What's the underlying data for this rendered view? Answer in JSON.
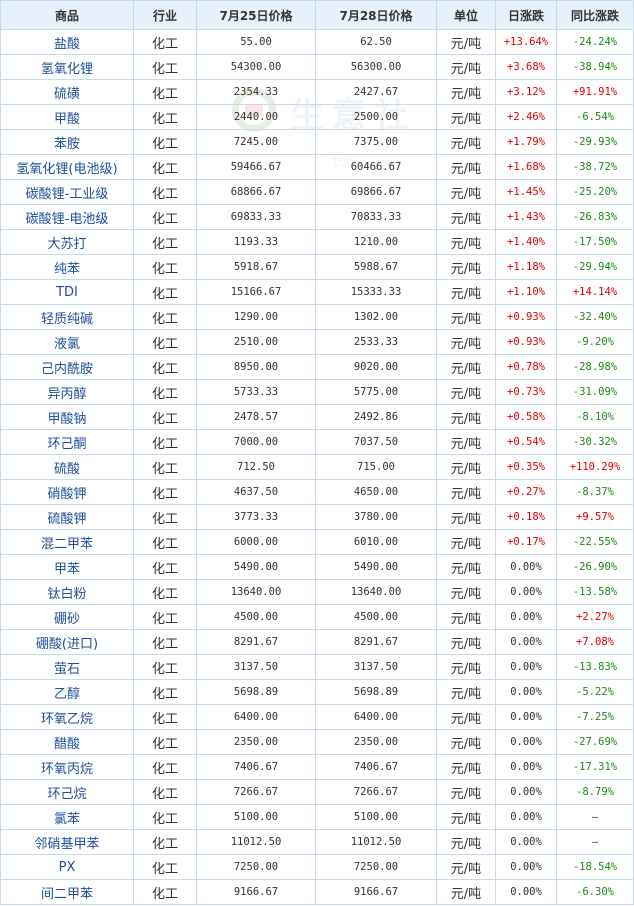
{
  "headers": [
    "商品",
    "行业",
    "7月25日价格",
    "7月28日价格",
    "单位",
    "日涨跌",
    "同比涨跌"
  ],
  "watermark": {
    "text": "生意社",
    "url": "100ppi.com"
  },
  "colors": {
    "up": "#e00000",
    "down": "#1a8a1a",
    "header_bg": "#e7f1fc",
    "border": "#c6d9ee",
    "link": "#1f4e9d"
  },
  "rows": [
    {
      "name": "盐酸",
      "industry": "化工",
      "p1": "55.00",
      "p2": "62.50",
      "unit": "元/吨",
      "day": "+13.64%",
      "yoy": "-24.24%"
    },
    {
      "name": "氢氧化锂",
      "industry": "化工",
      "p1": "54300.00",
      "p2": "56300.00",
      "unit": "元/吨",
      "day": "+3.68%",
      "yoy": "-38.94%"
    },
    {
      "name": "硫磺",
      "industry": "化工",
      "p1": "2354.33",
      "p2": "2427.67",
      "unit": "元/吨",
      "day": "+3.12%",
      "yoy": "+91.91%"
    },
    {
      "name": "甲酸",
      "industry": "化工",
      "p1": "2440.00",
      "p2": "2500.00",
      "unit": "元/吨",
      "day": "+2.46%",
      "yoy": "-6.54%"
    },
    {
      "name": "苯胺",
      "industry": "化工",
      "p1": "7245.00",
      "p2": "7375.00",
      "unit": "元/吨",
      "day": "+1.79%",
      "yoy": "-29.93%"
    },
    {
      "name": "氢氧化锂(电池级)",
      "industry": "化工",
      "p1": "59466.67",
      "p2": "60466.67",
      "unit": "元/吨",
      "day": "+1.68%",
      "yoy": "-38.72%"
    },
    {
      "name": "碳酸锂-工业级",
      "industry": "化工",
      "p1": "68866.67",
      "p2": "69866.67",
      "unit": "元/吨",
      "day": "+1.45%",
      "yoy": "-25.20%"
    },
    {
      "name": "碳酸锂-电池级",
      "industry": "化工",
      "p1": "69833.33",
      "p2": "70833.33",
      "unit": "元/吨",
      "day": "+1.43%",
      "yoy": "-26.83%"
    },
    {
      "name": "大苏打",
      "industry": "化工",
      "p1": "1193.33",
      "p2": "1210.00",
      "unit": "元/吨",
      "day": "+1.40%",
      "yoy": "-17.50%"
    },
    {
      "name": "纯苯",
      "industry": "化工",
      "p1": "5918.67",
      "p2": "5988.67",
      "unit": "元/吨",
      "day": "+1.18%",
      "yoy": "-29.94%"
    },
    {
      "name": "TDI",
      "industry": "化工",
      "p1": "15166.67",
      "p2": "15333.33",
      "unit": "元/吨",
      "day": "+1.10%",
      "yoy": "+14.14%"
    },
    {
      "name": "轻质纯碱",
      "industry": "化工",
      "p1": "1290.00",
      "p2": "1302.00",
      "unit": "元/吨",
      "day": "+0.93%",
      "yoy": "-32.40%"
    },
    {
      "name": "液氯",
      "industry": "化工",
      "p1": "2510.00",
      "p2": "2533.33",
      "unit": "元/吨",
      "day": "+0.93%",
      "yoy": "-9.20%"
    },
    {
      "name": "己内酰胺",
      "industry": "化工",
      "p1": "8950.00",
      "p2": "9020.00",
      "unit": "元/吨",
      "day": "+0.78%",
      "yoy": "-28.98%"
    },
    {
      "name": "异丙醇",
      "industry": "化工",
      "p1": "5733.33",
      "p2": "5775.00",
      "unit": "元/吨",
      "day": "+0.73%",
      "yoy": "-31.09%"
    },
    {
      "name": "甲酸钠",
      "industry": "化工",
      "p1": "2478.57",
      "p2": "2492.86",
      "unit": "元/吨",
      "day": "+0.58%",
      "yoy": "-8.10%"
    },
    {
      "name": "环己酮",
      "industry": "化工",
      "p1": "7000.00",
      "p2": "7037.50",
      "unit": "元/吨",
      "day": "+0.54%",
      "yoy": "-30.32%"
    },
    {
      "name": "硫酸",
      "industry": "化工",
      "p1": "712.50",
      "p2": "715.00",
      "unit": "元/吨",
      "day": "+0.35%",
      "yoy": "+110.29%"
    },
    {
      "name": "硝酸钾",
      "industry": "化工",
      "p1": "4637.50",
      "p2": "4650.00",
      "unit": "元/吨",
      "day": "+0.27%",
      "yoy": "-8.37%"
    },
    {
      "name": "硫酸钾",
      "industry": "化工",
      "p1": "3773.33",
      "p2": "3780.00",
      "unit": "元/吨",
      "day": "+0.18%",
      "yoy": "+9.57%"
    },
    {
      "name": "混二甲苯",
      "industry": "化工",
      "p1": "6000.00",
      "p2": "6010.00",
      "unit": "元/吨",
      "day": "+0.17%",
      "yoy": "-22.55%"
    },
    {
      "name": "甲苯",
      "industry": "化工",
      "p1": "5490.00",
      "p2": "5490.00",
      "unit": "元/吨",
      "day": "0.00%",
      "yoy": "-26.90%"
    },
    {
      "name": "钛白粉",
      "industry": "化工",
      "p1": "13640.00",
      "p2": "13640.00",
      "unit": "元/吨",
      "day": "0.00%",
      "yoy": "-13.58%"
    },
    {
      "name": "硼砂",
      "industry": "化工",
      "p1": "4500.00",
      "p2": "4500.00",
      "unit": "元/吨",
      "day": "0.00%",
      "yoy": "+2.27%"
    },
    {
      "name": "硼酸(进口)",
      "industry": "化工",
      "p1": "8291.67",
      "p2": "8291.67",
      "unit": "元/吨",
      "day": "0.00%",
      "yoy": "+7.08%"
    },
    {
      "name": "萤石",
      "industry": "化工",
      "p1": "3137.50",
      "p2": "3137.50",
      "unit": "元/吨",
      "day": "0.00%",
      "yoy": "-13.83%"
    },
    {
      "name": "乙醇",
      "industry": "化工",
      "p1": "5698.89",
      "p2": "5698.89",
      "unit": "元/吨",
      "day": "0.00%",
      "yoy": "-5.22%"
    },
    {
      "name": "环氧乙烷",
      "industry": "化工",
      "p1": "6400.00",
      "p2": "6400.00",
      "unit": "元/吨",
      "day": "0.00%",
      "yoy": "-7.25%"
    },
    {
      "name": "醋酸",
      "industry": "化工",
      "p1": "2350.00",
      "p2": "2350.00",
      "unit": "元/吨",
      "day": "0.00%",
      "yoy": "-27.69%"
    },
    {
      "name": "环氧丙烷",
      "industry": "化工",
      "p1": "7406.67",
      "p2": "7406.67",
      "unit": "元/吨",
      "day": "0.00%",
      "yoy": "-17.31%"
    },
    {
      "name": "环己烷",
      "industry": "化工",
      "p1": "7266.67",
      "p2": "7266.67",
      "unit": "元/吨",
      "day": "0.00%",
      "yoy": "-8.79%"
    },
    {
      "name": "氯苯",
      "industry": "化工",
      "p1": "5100.00",
      "p2": "5100.00",
      "unit": "元/吨",
      "day": "0.00%",
      "yoy": "—"
    },
    {
      "name": "邻硝基甲苯",
      "industry": "化工",
      "p1": "11012.50",
      "p2": "11012.50",
      "unit": "元/吨",
      "day": "0.00%",
      "yoy": "—"
    },
    {
      "name": "PX",
      "industry": "化工",
      "p1": "7250.00",
      "p2": "7250.00",
      "unit": "元/吨",
      "day": "0.00%",
      "yoy": "-18.54%"
    },
    {
      "name": "间二甲苯",
      "industry": "化工",
      "p1": "9166.67",
      "p2": "9166.67",
      "unit": "元/吨",
      "day": "0.00%",
      "yoy": "-6.30%"
    }
  ]
}
